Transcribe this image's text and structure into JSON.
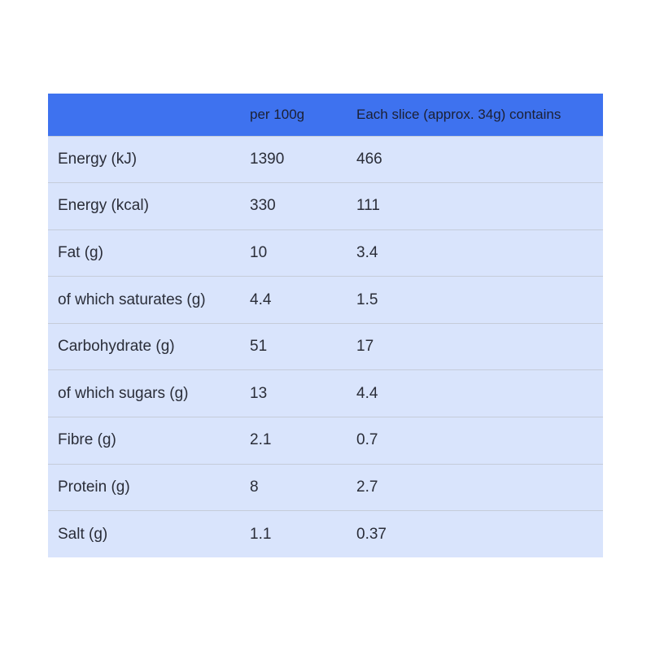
{
  "table": {
    "header": [
      "per 100g",
      "Each slice (approx. 34g) contains"
    ],
    "rows": [
      [
        "Energy (kJ)",
        "1390",
        "466"
      ],
      [
        "Energy (kcal)",
        "330",
        "111"
      ],
      [
        "Fat (g)",
        "10",
        "3.4"
      ],
      [
        "of which saturates (g)",
        "4.4",
        "1.5"
      ],
      [
        "Carbohydrate (g)",
        "51",
        "17"
      ],
      [
        "of which sugars (g)",
        "13",
        "4.4"
      ],
      [
        "Fibre (g)",
        "2.1",
        "0.7"
      ],
      [
        "Protein (g)",
        "8",
        "2.7"
      ],
      [
        "Salt (g)",
        "1.1",
        "0.37"
      ]
    ]
  }
}
